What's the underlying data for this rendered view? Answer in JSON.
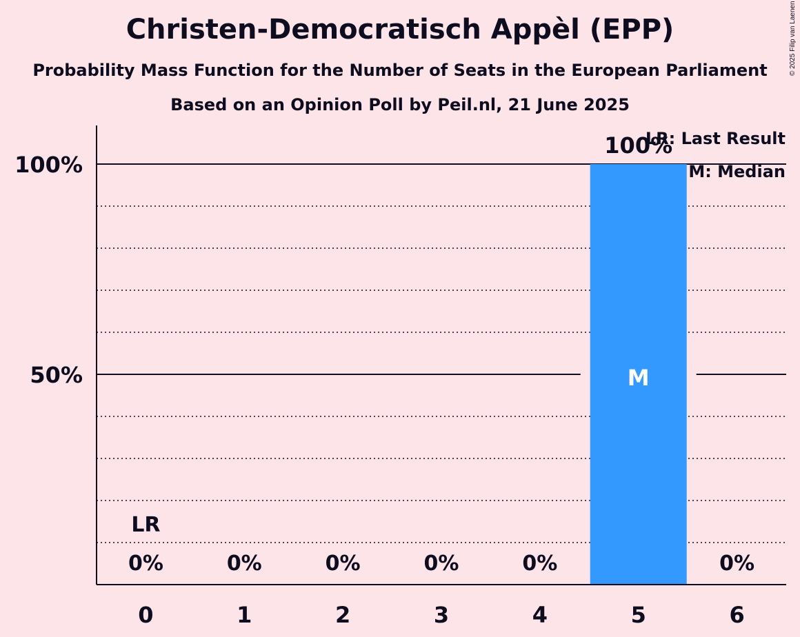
{
  "title": "Christen-Democratisch Appèl (EPP)",
  "subtitle": "Probability Mass Function for the Number of Seats in the European Parliament",
  "subtitle2": "Based on an Opinion Poll by Peil.nl, 21 June 2025",
  "copyright": "© 2025 Filip van Laenen",
  "legend": {
    "lr": "LR: Last Result",
    "m": "M: Median"
  },
  "colors": {
    "bar": "#3399ff",
    "background": "#fce4e8",
    "text": "#0d0d1f"
  },
  "chart_data": {
    "type": "bar",
    "categories": [
      "0",
      "1",
      "2",
      "3",
      "4",
      "5",
      "6"
    ],
    "values": [
      0,
      0,
      0,
      0,
      0,
      100,
      0
    ],
    "value_labels": [
      "0%",
      "0%",
      "0%",
      "0%",
      "0%",
      "100%",
      "0%"
    ],
    "yticks": [
      {
        "value": 50,
        "label": "50%"
      },
      {
        "value": 100,
        "label": "100%"
      }
    ],
    "minor_gridlines": [
      10,
      20,
      30,
      40,
      60,
      70,
      80,
      90
    ],
    "ylim": [
      0,
      110
    ],
    "last_result_category": "0",
    "last_result_label": "LR",
    "median_category": "5",
    "median_label": "M",
    "legend_position": "top-right",
    "grid": true
  }
}
